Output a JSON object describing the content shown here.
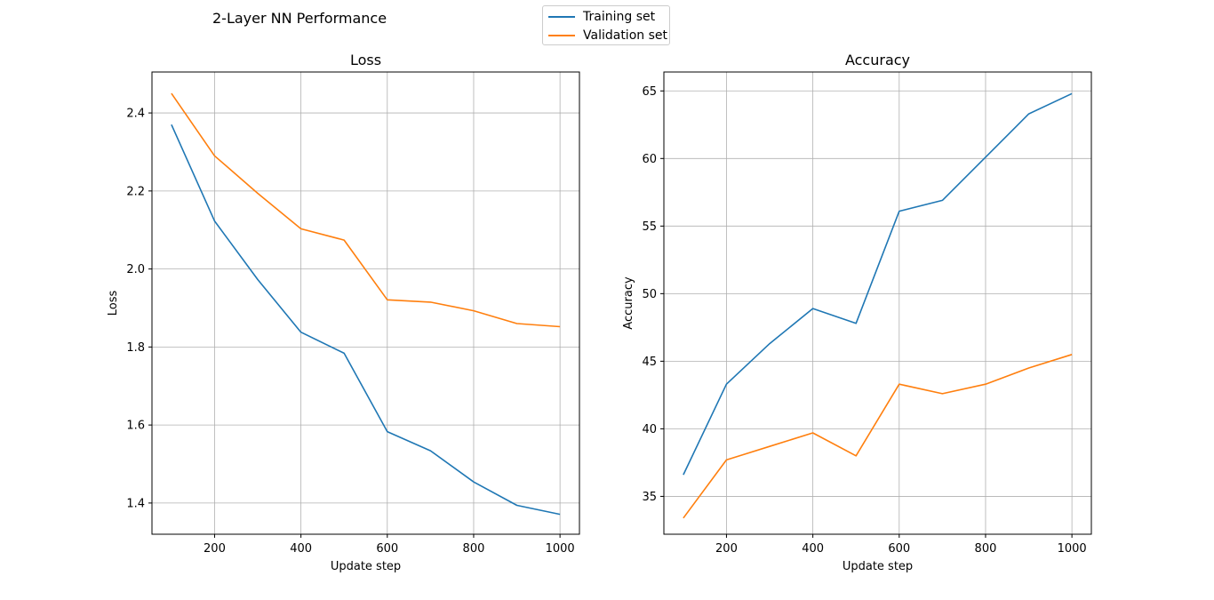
{
  "figure": {
    "title": "2-Layer NN Performance",
    "legend": [
      {
        "label": "Training set",
        "color": "#1f77b4"
      },
      {
        "label": "Validation set",
        "color": "#ff7f0e"
      }
    ]
  },
  "chart_data": [
    {
      "type": "line",
      "title": "Loss",
      "xlabel": "Update step",
      "ylabel": "Loss",
      "xlim": [
        55,
        1045
      ],
      "ylim": [
        1.32,
        2.505
      ],
      "xticks": [
        200,
        400,
        600,
        800,
        1000
      ],
      "yticks": [
        1.4,
        1.6,
        1.8,
        2.0,
        2.2,
        2.4
      ],
      "yticklabels": [
        "1.4",
        "1.6",
        "1.8",
        "2.0",
        "2.2",
        "2.4"
      ],
      "grid": true,
      "x": [
        100,
        200,
        300,
        400,
        500,
        600,
        700,
        800,
        900,
        1000
      ],
      "series": [
        {
          "name": "Training set",
          "color": "#1f77b4",
          "values": [
            2.37,
            2.123,
            1.973,
            1.838,
            1.784,
            1.583,
            1.534,
            1.454,
            1.394,
            1.371
          ]
        },
        {
          "name": "Validation set",
          "color": "#ff7f0e",
          "values": [
            2.45,
            2.29,
            2.194,
            2.103,
            2.074,
            1.921,
            1.915,
            1.893,
            1.86,
            1.852
          ]
        }
      ]
    },
    {
      "type": "line",
      "title": "Accuracy",
      "xlabel": "Update step",
      "ylabel": "Accuracy",
      "xlim": [
        55,
        1045
      ],
      "ylim": [
        32.2,
        66.4
      ],
      "xticks": [
        200,
        400,
        600,
        800,
        1000
      ],
      "yticks": [
        35,
        40,
        45,
        50,
        55,
        60,
        65
      ],
      "yticklabels": [
        "35",
        "40",
        "45",
        "50",
        "55",
        "60",
        "65"
      ],
      "grid": true,
      "x": [
        100,
        200,
        300,
        400,
        500,
        600,
        700,
        800,
        900,
        1000
      ],
      "series": [
        {
          "name": "Training set",
          "color": "#1f77b4",
          "values": [
            36.6,
            43.3,
            46.3,
            48.9,
            47.8,
            56.1,
            56.9,
            60.1,
            63.3,
            64.8
          ]
        },
        {
          "name": "Validation set",
          "color": "#ff7f0e",
          "values": [
            33.4,
            37.7,
            38.7,
            39.7,
            38.0,
            43.3,
            42.6,
            43.3,
            44.5,
            45.5
          ]
        }
      ]
    }
  ]
}
